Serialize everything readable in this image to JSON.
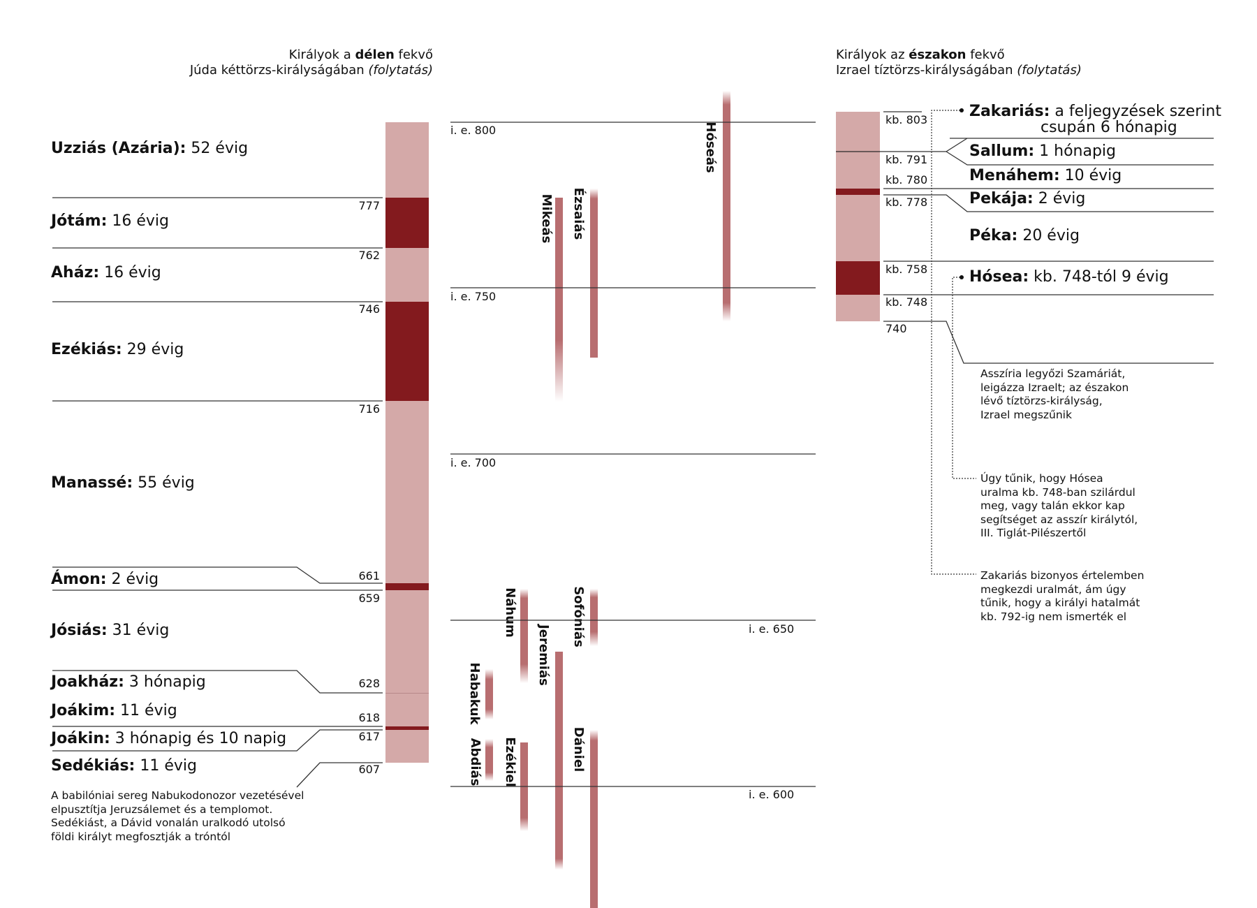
{
  "header_left": {
    "line1_pre": "Királyok a ",
    "line1_bold": "délen",
    "line1_post": " fekvő",
    "line2_pre": "Júda kéttörzs-királyságában ",
    "line2_italic": "(folytatás)"
  },
  "header_right": {
    "line1_pre": "Királyok az ",
    "line1_bold": "északon",
    "line1_post": " fekvő",
    "line2_pre": "Izrael tíztörzs-királyságában ",
    "line2_italic": "(folytatás)"
  },
  "judah_kings": [
    {
      "name": "Uzziás (Azária):",
      "reign": " 52 évig"
    },
    {
      "name": "Jótám:",
      "reign": " 16 évig"
    },
    {
      "name": "Aház:",
      "reign": " 16 évig"
    },
    {
      "name": "Ezékiás:",
      "reign": " 29 évig"
    },
    {
      "name": "Manassé:",
      "reign": " 55 évig"
    },
    {
      "name": "Ámon:",
      "reign": " 2 évig"
    },
    {
      "name": "Jósiás:",
      "reign": " 31 évig"
    },
    {
      "name": "Joakház:",
      "reign": " 3 hónapig"
    },
    {
      "name": "Joákim:",
      "reign": " 11 évig"
    },
    {
      "name": "Joákin:",
      "reign": " 3 hónapig és 10 napig"
    },
    {
      "name": "Sedékiás:",
      "reign": " 11 évig"
    }
  ],
  "judah_years": [
    "777",
    "762",
    "746",
    "716",
    "661",
    "659",
    "628",
    "618",
    "617",
    "607"
  ],
  "judah_note": [
    "A babilóniai sereg Nabukodonozor vezetésével",
    "elpusztítja Jeruzsálemet és a templomot.",
    "Sedékiást, a Dávid vonalán uralkodó utolsó",
    "földi királyt megfosztják a tróntól"
  ],
  "era_labels": [
    "i. e. 800",
    "i. e. 750",
    "i. e. 700",
    "i. e. 650",
    "i. e. 600"
  ],
  "prophets": [
    "Hóseás",
    "Mikeás",
    "Ézsaiás",
    "Náhum",
    "Sofóniás",
    "Jeremiás",
    "Habakuk",
    "Abdiás",
    "Ezékiel",
    "Dániel"
  ],
  "israel_years": [
    "kb. 803",
    "kb. 791",
    "kb. 780",
    "kb. 778",
    "kb. 758",
    "kb. 748",
    "740"
  ],
  "israel_kings": [
    {
      "name": "Zakariás:",
      "reign": " a feljegyzések szerint",
      "reign2": "csupán 6 hónapig"
    },
    {
      "name": "Sallum:",
      "reign": " 1 hónapig"
    },
    {
      "name": "Menáhem:",
      "reign": " 10 évig"
    },
    {
      "name": "Pekája:",
      "reign": " 2 évig"
    },
    {
      "name": "Péka:",
      "reign": " 20 évig"
    },
    {
      "name": "Hósea:",
      "reign": " kb. 748-tól 9 évig"
    }
  ],
  "israel_notes": {
    "assyria": [
      "Asszíria legyőzi Szamáriát,",
      "leigázza Izraelt; az északon",
      "lévő tíztörzs-királyság,",
      "Izrael megszűnik"
    ],
    "hosea": [
      "Úgy tűnik, hogy Hósea",
      "uralma kb. 748-ban szilárdul",
      "meg, vagy talán ekkor kap",
      "segítséget az asszír királytól,",
      "III. Tiglát-Pilészertől"
    ],
    "zechariah": [
      "Zakariás bizonyos értelemben",
      "megkezdi uralmát, ám úgy",
      "tűnik, hogy a királyi hatalmát",
      "kb. 792-ig nem ismerték el"
    ]
  },
  "colors": {
    "light": "#d4a9a8",
    "dark": "#831a1e",
    "prophet": "#b86e70",
    "line": "#333333"
  }
}
